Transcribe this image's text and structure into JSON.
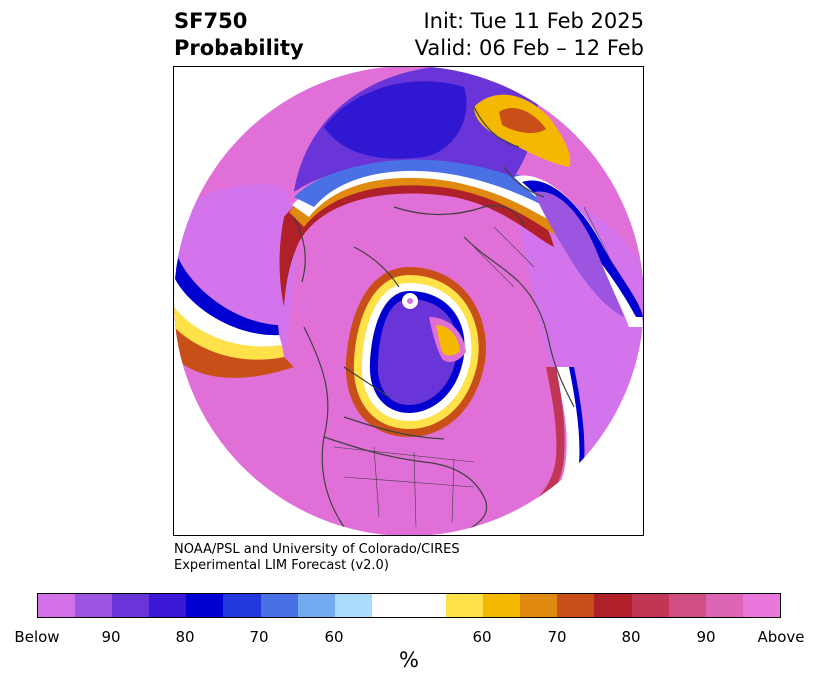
{
  "header": {
    "title_line1": "SF750",
    "title_line2": "Probability",
    "init": "Init: Tue 11 Feb 2025",
    "valid": "Valid: 06 Feb – 12 Feb"
  },
  "credit": {
    "line1": "NOAA/PSL and University of Colorado/CIRES",
    "line2": "Experimental LIM Forecast (v2.0)"
  },
  "colorbar": {
    "unit": "%",
    "colors": [
      "#d470e8",
      "#9c55e0",
      "#6a35d8",
      "#3a18d5",
      "#0000d0",
      "#2238dd",
      "#4a70e6",
      "#73aaf0",
      "#acdafb",
      "#ffffff",
      "#ffe24a",
      "#f5b800",
      "#e08a10",
      "#c85018",
      "#b02028",
      "#c23655",
      "#d04e82",
      "#dd65b5",
      "#ea78dc"
    ],
    "ticks": [
      "Below",
      "90",
      "80",
      "70",
      "60",
      "60",
      "70",
      "80",
      "90",
      "Above"
    ]
  },
  "map": {
    "projection": "north-polar-stereographic",
    "colors": {
      "above": "#e070d8",
      "below": "#d474ec",
      "strong_below": "#6a35d8",
      "coast": "#404040"
    }
  }
}
